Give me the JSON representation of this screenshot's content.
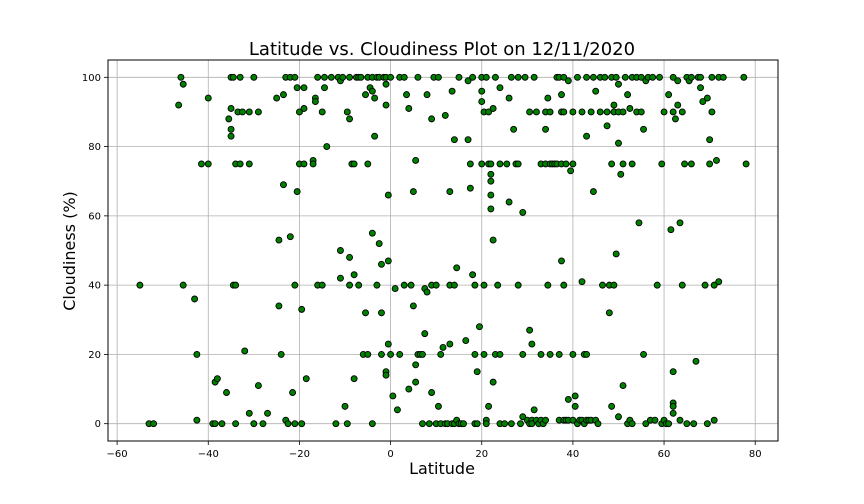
{
  "chart_data": {
    "type": "scatter",
    "title": "Latitude vs. Cloudiness Plot on 12/11/2020",
    "xlabel": "Latitude",
    "ylabel": "Cloudiness (%)",
    "xlim": [
      -62,
      85
    ],
    "ylim": [
      -5,
      105
    ],
    "xticks": [
      -60,
      -40,
      -20,
      0,
      20,
      40,
      60,
      80
    ],
    "yticks": [
      0,
      20,
      40,
      60,
      80,
      100
    ],
    "grid": true,
    "marker_face": "#008000",
    "marker_edge": "#000000",
    "points": [
      [
        -55,
        40
      ],
      [
        -53,
        0
      ],
      [
        -52,
        0
      ],
      [
        -46.5,
        92
      ],
      [
        -46,
        100
      ],
      [
        -45.5,
        98
      ],
      [
        -45.5,
        40
      ],
      [
        -43,
        36
      ],
      [
        -42.5,
        20
      ],
      [
        -42.5,
        1
      ],
      [
        -41.5,
        75
      ],
      [
        -40,
        94
      ],
      [
        -40,
        75
      ],
      [
        -39,
        0
      ],
      [
        -38.5,
        0
      ],
      [
        -38.5,
        12
      ],
      [
        -38,
        13
      ],
      [
        -37,
        0
      ],
      [
        -36,
        9
      ],
      [
        -35.5,
        88
      ],
      [
        -35,
        91
      ],
      [
        -35,
        85
      ],
      [
        -35,
        83
      ],
      [
        -35,
        100
      ],
      [
        -34.5,
        100
      ],
      [
        -34.5,
        40
      ],
      [
        -34,
        75
      ],
      [
        -34,
        40
      ],
      [
        -34,
        0
      ],
      [
        -33.5,
        90
      ],
      [
        -33,
        100
      ],
      [
        -33,
        75
      ],
      [
        -32.5,
        90
      ],
      [
        -32,
        21
      ],
      [
        -31,
        90
      ],
      [
        -31,
        75
      ],
      [
        -31,
        3
      ],
      [
        -30,
        0
      ],
      [
        -30,
        100
      ],
      [
        -29,
        90
      ],
      [
        -29,
        11
      ],
      [
        -28,
        0
      ],
      [
        -27,
        3
      ],
      [
        -25,
        94
      ],
      [
        -24.5,
        53
      ],
      [
        -24.5,
        34
      ],
      [
        -24,
        20
      ],
      [
        -23.5,
        95
      ],
      [
        -23.5,
        69
      ],
      [
        -23,
        100
      ],
      [
        -23,
        1
      ],
      [
        -22.5,
        0
      ],
      [
        -22,
        100
      ],
      [
        -22,
        54
      ],
      [
        -21.5,
        9
      ],
      [
        -21,
        100
      ],
      [
        -21,
        40
      ],
      [
        -21,
        0
      ],
      [
        -20.5,
        97
      ],
      [
        -20.5,
        67
      ],
      [
        -20,
        90
      ],
      [
        -20,
        75
      ],
      [
        -19.5,
        0
      ],
      [
        -19.5,
        33
      ],
      [
        -19,
        75
      ],
      [
        -19,
        97
      ],
      [
        -19,
        91
      ],
      [
        -18.5,
        13
      ],
      [
        -17,
        76
      ],
      [
        -17,
        75
      ],
      [
        -16.5,
        94
      ],
      [
        -16.5,
        93
      ],
      [
        -16,
        100
      ],
      [
        -16,
        40
      ],
      [
        -15,
        90
      ],
      [
        -15,
        40
      ],
      [
        -14.5,
        97
      ],
      [
        -14.5,
        100
      ],
      [
        -14,
        80
      ],
      [
        -13,
        100
      ],
      [
        -12,
        0
      ],
      [
        -11.5,
        100
      ],
      [
        -11,
        99
      ],
      [
        -11,
        50
      ],
      [
        -11,
        42
      ],
      [
        -10.5,
        100
      ],
      [
        -10,
        5
      ],
      [
        -9.5,
        90
      ],
      [
        -9.5,
        0
      ],
      [
        -9,
        100
      ],
      [
        -9,
        88
      ],
      [
        -9,
        48
      ],
      [
        -9,
        40
      ],
      [
        -8.5,
        75
      ],
      [
        -8,
        75
      ],
      [
        -8,
        43
      ],
      [
        -8,
        13
      ],
      [
        -7.5,
        100
      ],
      [
        -7,
        100
      ],
      [
        -7,
        40
      ],
      [
        -6.5,
        100
      ],
      [
        -6,
        20
      ],
      [
        -5.5,
        95
      ],
      [
        -5.5,
        32
      ],
      [
        -5,
        100
      ],
      [
        -5,
        75
      ],
      [
        -5,
        20
      ],
      [
        -4.5,
        97
      ],
      [
        -4,
        96
      ],
      [
        -4,
        100
      ],
      [
        -4,
        55
      ],
      [
        -4,
        0
      ],
      [
        -3.5,
        94
      ],
      [
        -3.5,
        83
      ],
      [
        -3,
        100
      ],
      [
        -3,
        40
      ],
      [
        -2.5,
        100
      ],
      [
        -2.5,
        52
      ],
      [
        -2,
        46
      ],
      [
        -2,
        32
      ],
      [
        -2,
        20
      ],
      [
        -1.5,
        100
      ],
      [
        -1,
        100
      ],
      [
        -1,
        98
      ],
      [
        -1,
        92
      ],
      [
        -1,
        15
      ],
      [
        -1,
        14
      ],
      [
        -0.5,
        66
      ],
      [
        -0.5,
        47
      ],
      [
        -0.5,
        23
      ],
      [
        0,
        100
      ],
      [
        0,
        20
      ],
      [
        0.5,
        8
      ],
      [
        1,
        39
      ],
      [
        1.5,
        4
      ],
      [
        2,
        100
      ],
      [
        2,
        20
      ],
      [
        3,
        100
      ],
      [
        3,
        40
      ],
      [
        3.5,
        95
      ],
      [
        4,
        91
      ],
      [
        4,
        10
      ],
      [
        4.5,
        40
      ],
      [
        5,
        67
      ],
      [
        5,
        34
      ],
      [
        5.5,
        76
      ],
      [
        5.5,
        12
      ],
      [
        5.5,
        17
      ],
      [
        6,
        20
      ],
      [
        6,
        100
      ],
      [
        6.5,
        20
      ],
      [
        7,
        0
      ],
      [
        7,
        20
      ],
      [
        7.5,
        26
      ],
      [
        7.5,
        39
      ],
      [
        8,
        95
      ],
      [
        8,
        38
      ],
      [
        8.5,
        0
      ],
      [
        9,
        9
      ],
      [
        9,
        88
      ],
      [
        9,
        40
      ],
      [
        9.5,
        100
      ],
      [
        10,
        40
      ],
      [
        10,
        0
      ],
      [
        10.5,
        100
      ],
      [
        10.5,
        5
      ],
      [
        11,
        20
      ],
      [
        11,
        0
      ],
      [
        11.5,
        22
      ],
      [
        12,
        89
      ],
      [
        12,
        0
      ],
      [
        12.5,
        0
      ],
      [
        13,
        40
      ],
      [
        13,
        67
      ],
      [
        13,
        23
      ],
      [
        13.5,
        96
      ],
      [
        13.5,
        0
      ],
      [
        14,
        0
      ],
      [
        14,
        82
      ],
      [
        14,
        40
      ],
      [
        14.5,
        1
      ],
      [
        14.5,
        45
      ],
      [
        15,
        0
      ],
      [
        15,
        100
      ],
      [
        15.5,
        0
      ],
      [
        16,
        0
      ],
      [
        16.5,
        24
      ],
      [
        17,
        99
      ],
      [
        17,
        82
      ],
      [
        17.5,
        75
      ],
      [
        17.5,
        68
      ],
      [
        18,
        100
      ],
      [
        18,
        43
      ],
      [
        18.5,
        40
      ],
      [
        18.5,
        20
      ],
      [
        18.5,
        0
      ],
      [
        19,
        0
      ],
      [
        19,
        15
      ],
      [
        19.5,
        28
      ],
      [
        20,
        75
      ],
      [
        20,
        96
      ],
      [
        20,
        93
      ],
      [
        20,
        100
      ],
      [
        20.5,
        90
      ],
      [
        20.5,
        40
      ],
      [
        20.5,
        20
      ],
      [
        21,
        100
      ],
      [
        21,
        1
      ],
      [
        21,
        0
      ],
      [
        21.5,
        90
      ],
      [
        21.5,
        75
      ],
      [
        21.5,
        5
      ],
      [
        22,
        72
      ],
      [
        22,
        70
      ],
      [
        22,
        66
      ],
      [
        22,
        62
      ],
      [
        22,
        75
      ],
      [
        22.5,
        91
      ],
      [
        22.5,
        53
      ],
      [
        22.5,
        12
      ],
      [
        23,
        100
      ],
      [
        23,
        20
      ],
      [
        23.5,
        40
      ],
      [
        24,
        0
      ],
      [
        24,
        75
      ],
      [
        24,
        97
      ],
      [
        24,
        20
      ],
      [
        25,
        0
      ],
      [
        25.5,
        75
      ],
      [
        26,
        64
      ],
      [
        26,
        94
      ],
      [
        26.5,
        100
      ],
      [
        26.5,
        0
      ],
      [
        27,
        85
      ],
      [
        27.5,
        75
      ],
      [
        28,
        100
      ],
      [
        28,
        75
      ],
      [
        28,
        40
      ],
      [
        28.5,
        0
      ],
      [
        29,
        61
      ],
      [
        29,
        20
      ],
      [
        29,
        2
      ],
      [
        29.5,
        100
      ],
      [
        30,
        1
      ],
      [
        30.5,
        90
      ],
      [
        30.5,
        27
      ],
      [
        30.5,
        0
      ],
      [
        31,
        23
      ],
      [
        31,
        1
      ],
      [
        31,
        0
      ],
      [
        31.5,
        100
      ],
      [
        31.5,
        4
      ],
      [
        32,
        90
      ],
      [
        32,
        1
      ],
      [
        32.5,
        0
      ],
      [
        33,
        20
      ],
      [
        33,
        75
      ],
      [
        33,
        1
      ],
      [
        33.5,
        0
      ],
      [
        34,
        75
      ],
      [
        34,
        90
      ],
      [
        34,
        85
      ],
      [
        34,
        1
      ],
      [
        34.5,
        94
      ],
      [
        34.5,
        40
      ],
      [
        35,
        75
      ],
      [
        35,
        90
      ],
      [
        35,
        20
      ],
      [
        35.5,
        75
      ],
      [
        36,
        75
      ],
      [
        36.5,
        100
      ],
      [
        36.5,
        75
      ],
      [
        37,
        100
      ],
      [
        37,
        20
      ],
      [
        37,
        1
      ],
      [
        37.5,
        90
      ],
      [
        37.5,
        95
      ],
      [
        37.5,
        47
      ],
      [
        37.5,
        75
      ],
      [
        38,
        90
      ],
      [
        38,
        100
      ],
      [
        38,
        40
      ],
      [
        38,
        1
      ],
      [
        38.5,
        75
      ],
      [
        38.5,
        1
      ],
      [
        39,
        99
      ],
      [
        39,
        7
      ],
      [
        39,
        1
      ],
      [
        39.5,
        73
      ],
      [
        40,
        20
      ],
      [
        40,
        90
      ],
      [
        40,
        75
      ],
      [
        40,
        1
      ],
      [
        40.5,
        8
      ],
      [
        40.5,
        5
      ],
      [
        41,
        100
      ],
      [
        41,
        0
      ],
      [
        41.5,
        1
      ],
      [
        42,
        90
      ],
      [
        42,
        41
      ],
      [
        42,
        1
      ],
      [
        42.5,
        0
      ],
      [
        42.5,
        20
      ],
      [
        43,
        83
      ],
      [
        43,
        100
      ],
      [
        43,
        20
      ],
      [
        43,
        1
      ],
      [
        43.5,
        1
      ],
      [
        44,
        1
      ],
      [
        44,
        90
      ],
      [
        44.5,
        100
      ],
      [
        44.5,
        67
      ],
      [
        45,
        96
      ],
      [
        45,
        1
      ],
      [
        45.5,
        0
      ],
      [
        46,
        90
      ],
      [
        46,
        100
      ],
      [
        46.5,
        40
      ],
      [
        47,
        100
      ],
      [
        47.5,
        86
      ],
      [
        47.5,
        90
      ],
      [
        48,
        32
      ],
      [
        48,
        40
      ],
      [
        48.5,
        100
      ],
      [
        48.5,
        75
      ],
      [
        48.5,
        5
      ],
      [
        49,
        92
      ],
      [
        49,
        40
      ],
      [
        49,
        90
      ],
      [
        49.5,
        100
      ],
      [
        49.5,
        49
      ],
      [
        50,
        98
      ],
      [
        50,
        81
      ],
      [
        50,
        2
      ],
      [
        50,
        90
      ],
      [
        50.5,
        72
      ],
      [
        51,
        11
      ],
      [
        51,
        75
      ],
      [
        51,
        90
      ],
      [
        51.5,
        100
      ],
      [
        52,
        0
      ],
      [
        52,
        95
      ],
      [
        52.5,
        91
      ],
      [
        52.5,
        1
      ],
      [
        53,
        100
      ],
      [
        53,
        75
      ],
      [
        53,
        0
      ],
      [
        54,
        100
      ],
      [
        54,
        90
      ],
      [
        54.5,
        58
      ],
      [
        55,
        90
      ],
      [
        55,
        100
      ],
      [
        55.5,
        85
      ],
      [
        55.5,
        20
      ],
      [
        56,
        0
      ],
      [
        56,
        99
      ],
      [
        56.5,
        100
      ],
      [
        57,
        1
      ],
      [
        57.5,
        100
      ],
      [
        58,
        1
      ],
      [
        58.5,
        40
      ],
      [
        59,
        100
      ],
      [
        59.5,
        0
      ],
      [
        59.5,
        75
      ],
      [
        60,
        1
      ],
      [
        60,
        90
      ],
      [
        60.5,
        0
      ],
      [
        61,
        95
      ],
      [
        61,
        0
      ],
      [
        61.5,
        56
      ],
      [
        62,
        90
      ],
      [
        62,
        6
      ],
      [
        62,
        5
      ],
      [
        62,
        15
      ],
      [
        62,
        100
      ],
      [
        62,
        3
      ],
      [
        62.5,
        88
      ],
      [
        63,
        92
      ],
      [
        63,
        99
      ],
      [
        63.5,
        58
      ],
      [
        63.5,
        1
      ],
      [
        64,
        40
      ],
      [
        64,
        90
      ],
      [
        64.5,
        75
      ],
      [
        65,
        100
      ],
      [
        65,
        0
      ],
      [
        65.5,
        99
      ],
      [
        66,
        75
      ],
      [
        66,
        100
      ],
      [
        66.5,
        0
      ],
      [
        67,
        18
      ],
      [
        67.5,
        100
      ],
      [
        68,
        97
      ],
      [
        68,
        100
      ],
      [
        68.5,
        93
      ],
      [
        69,
        40
      ],
      [
        69.5,
        0
      ],
      [
        69.5,
        94
      ],
      [
        70,
        82
      ],
      [
        70,
        75
      ],
      [
        70.5,
        90
      ],
      [
        70.5,
        100
      ],
      [
        71,
        40
      ],
      [
        71,
        1
      ],
      [
        71.5,
        76
      ],
      [
        72,
        41
      ],
      [
        72,
        100
      ],
      [
        73,
        100
      ],
      [
        77.5,
        100
      ],
      [
        78,
        75
      ]
    ]
  }
}
